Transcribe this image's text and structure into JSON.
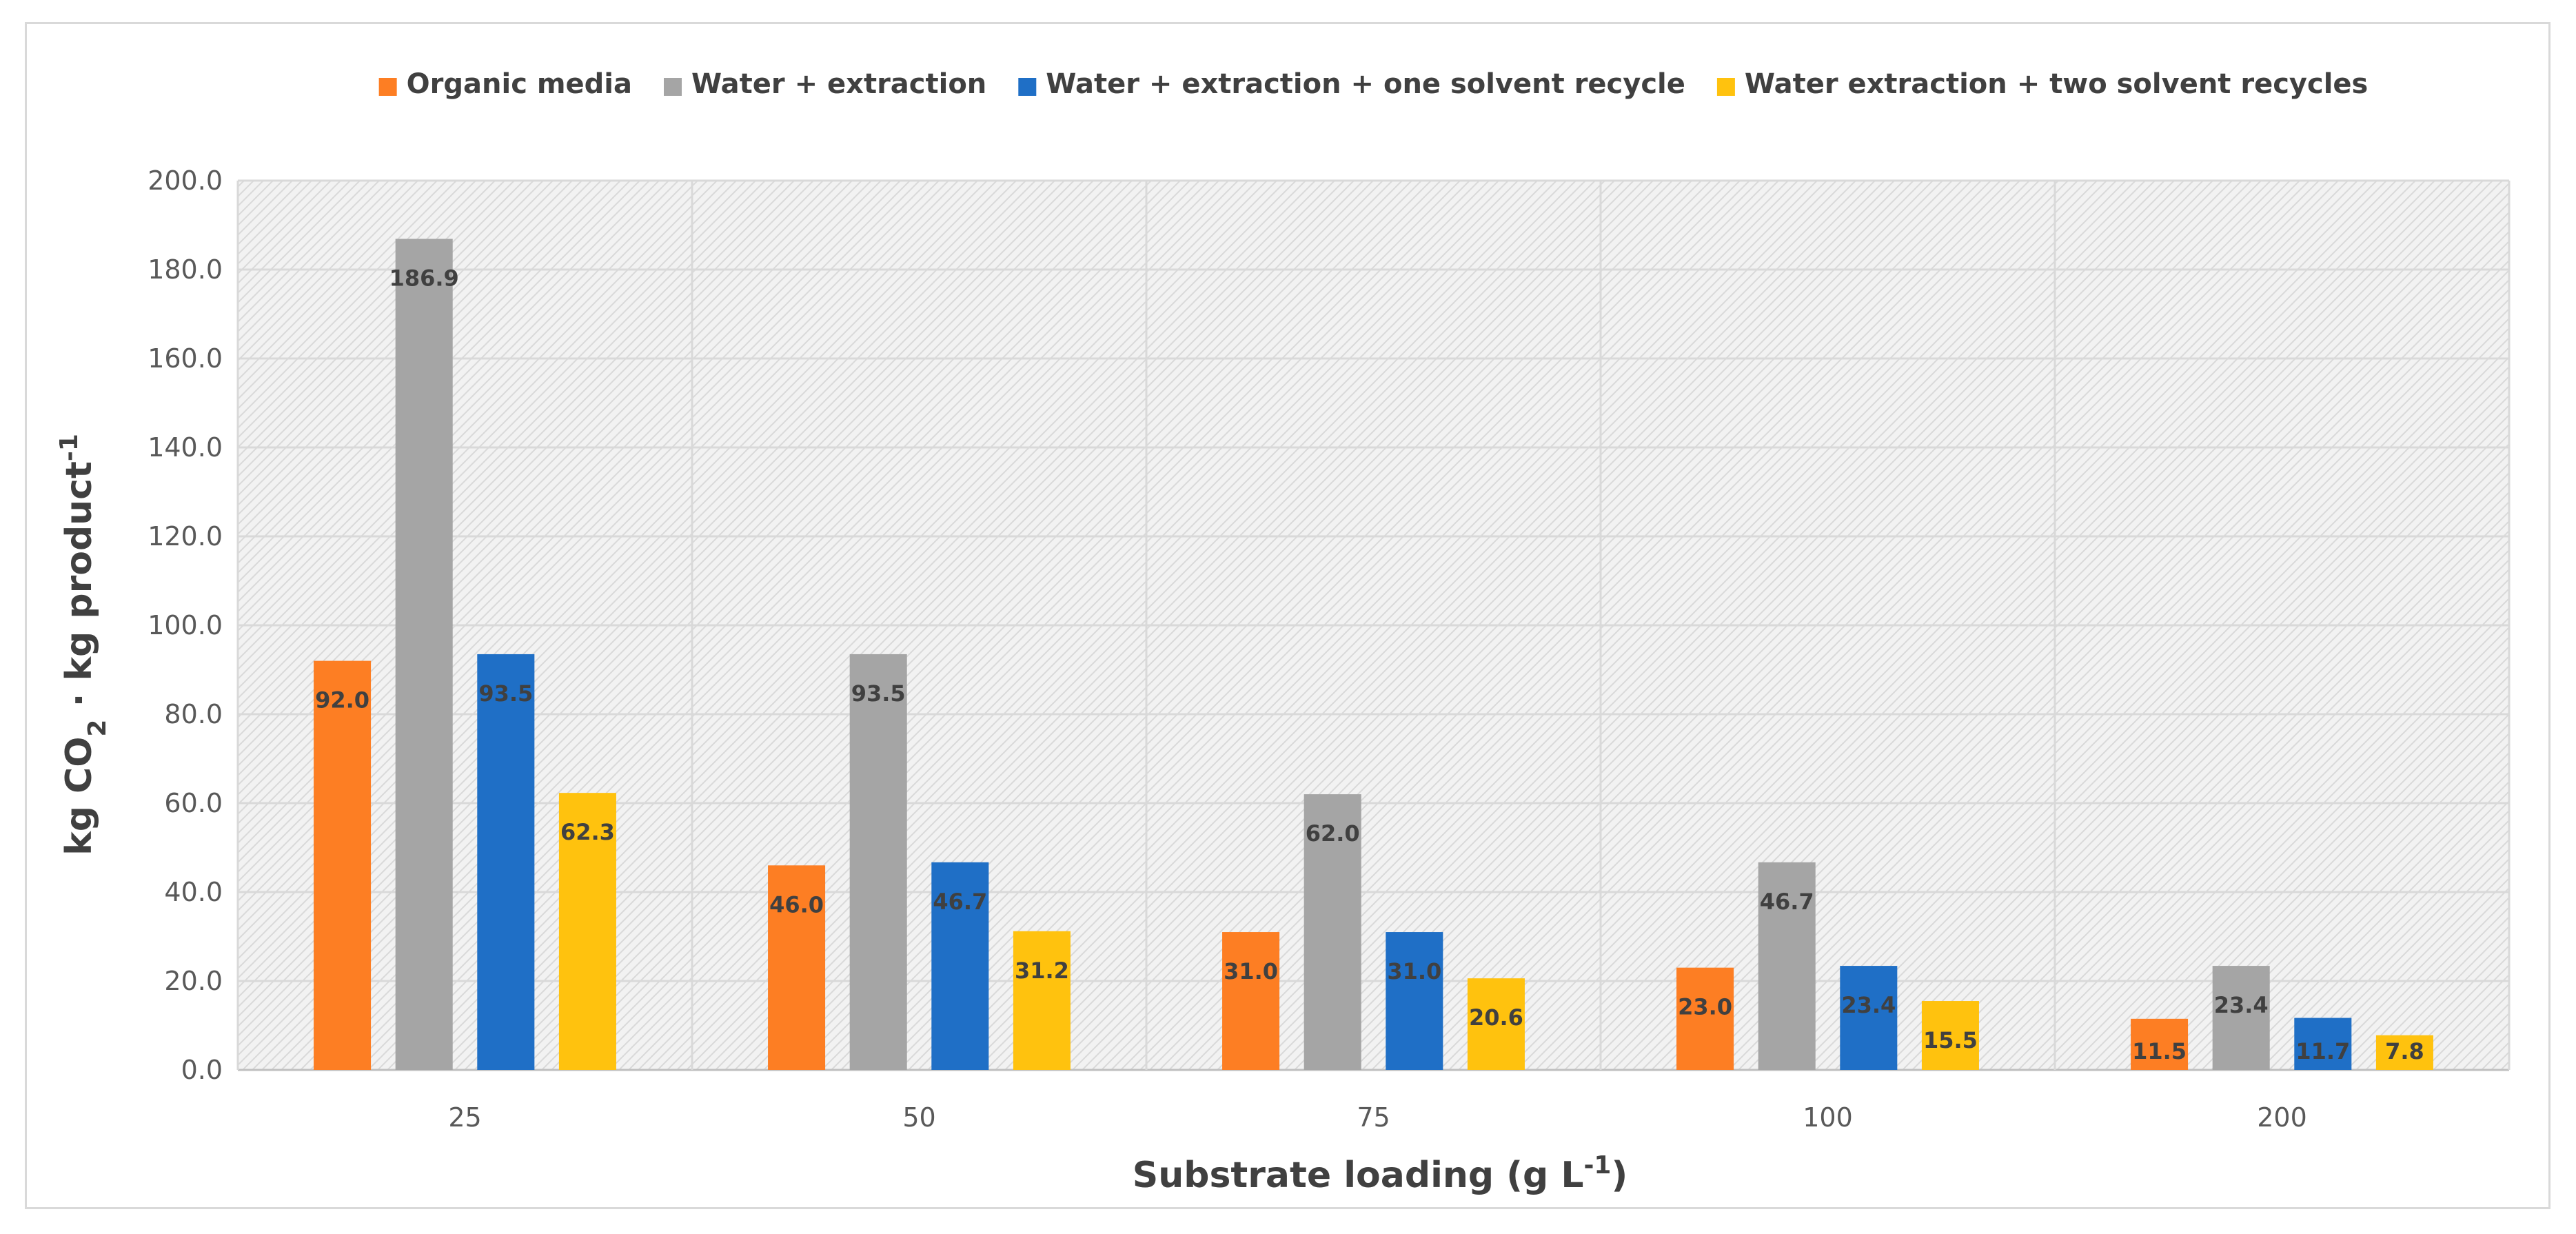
{
  "chart_data": {
    "type": "bar",
    "title": "",
    "xlabel": "Substrate loading (g L",
    "xlabel_sup": "-1",
    "xlabel_end": ")",
    "ylabel": "kg CO",
    "ylabel_sub": "2",
    "ylabel_mid": " · kg product",
    "ylabel_sup": "-1",
    "categories": [
      "25",
      "50",
      "75",
      "100",
      "200"
    ],
    "ylim": [
      0,
      200
    ],
    "yticks": [
      "0.0",
      "20.0",
      "40.0",
      "60.0",
      "80.0",
      "100.0",
      "120.0",
      "140.0",
      "160.0",
      "180.0",
      "200.0"
    ],
    "grid": true,
    "legend_position": "top",
    "series": [
      {
        "name": "Organic media",
        "color": "#fd7e23",
        "values": [
          92.0,
          46.0,
          31.0,
          23.0,
          11.5
        ],
        "labels": [
          "92.0",
          "46.0",
          "31.0",
          "23.0",
          "11.5"
        ]
      },
      {
        "name": "Water + extraction",
        "color": "#a5a5a5",
        "values": [
          186.9,
          93.5,
          62.0,
          46.7,
          23.4
        ],
        "labels": [
          "186.9",
          "93.5",
          "62.0",
          "46.7",
          "23.4"
        ]
      },
      {
        "name": "Water + extraction + one solvent recycle",
        "color": "#1f6fc6",
        "values": [
          93.5,
          46.7,
          31.0,
          23.4,
          11.7
        ],
        "labels": [
          "93.5",
          "46.7",
          "31.0",
          "23.4",
          "11.7"
        ]
      },
      {
        "name": "Water extraction + two solvent recycles",
        "color": "#ffc20e",
        "values": [
          62.3,
          31.2,
          20.6,
          15.5,
          7.8
        ],
        "labels": [
          "62.3",
          "31.2",
          "20.6",
          "15.5",
          "7.8"
        ]
      }
    ]
  }
}
